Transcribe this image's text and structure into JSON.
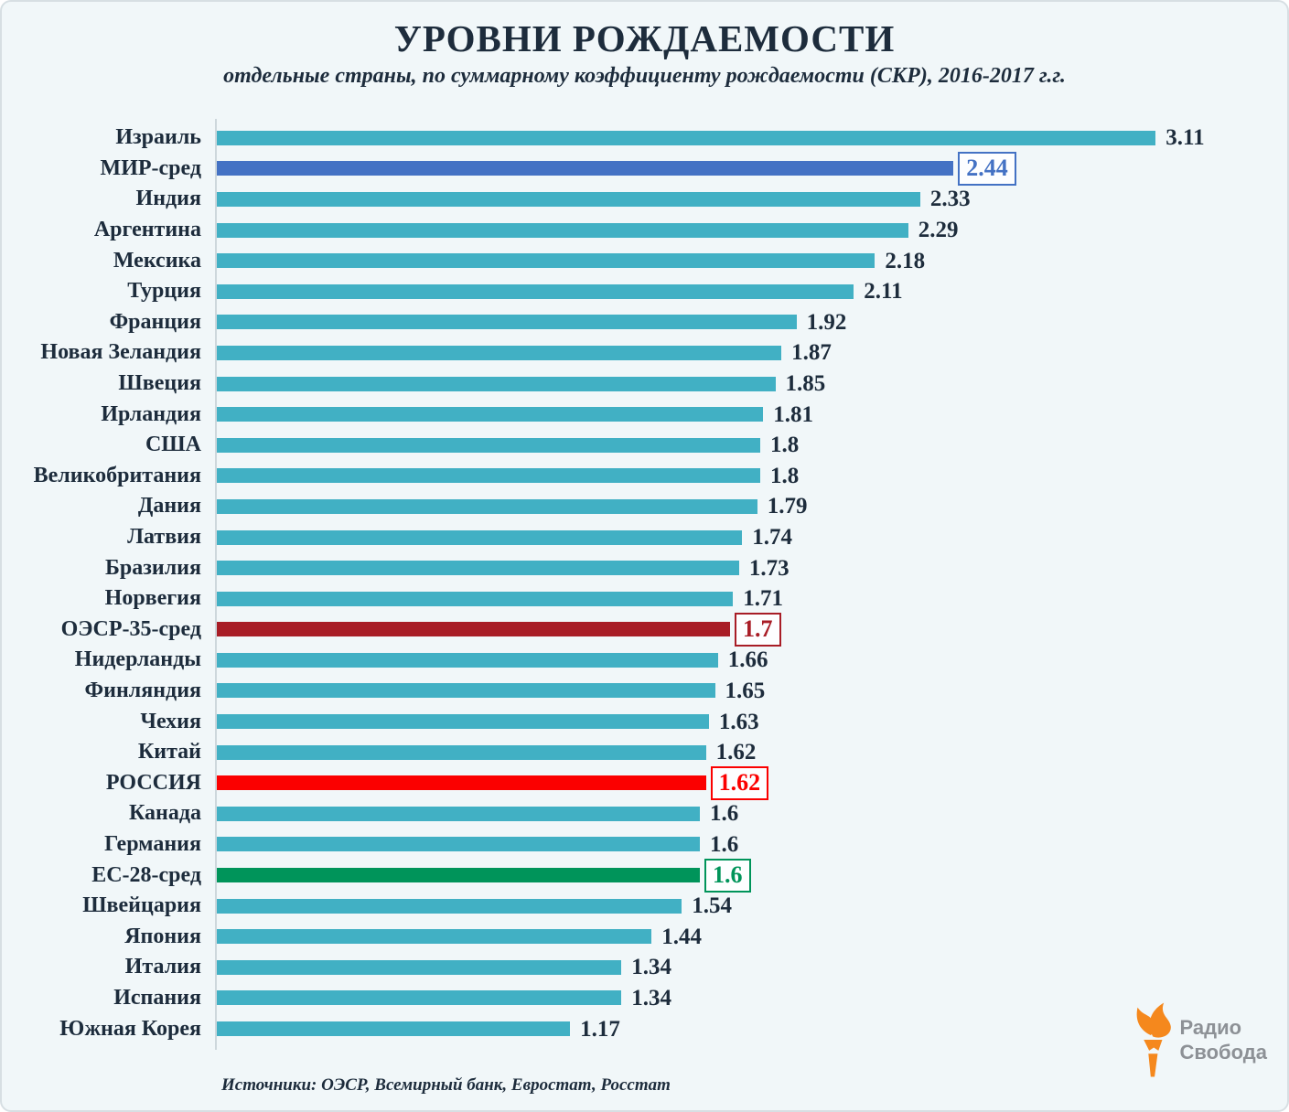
{
  "title": "УРОВНИ РОЖДАЕМОСТИ",
  "subtitle": "отдельные страны, по суммарному коэффициенту рождаемости (СКР), 2016-2017 г.г.",
  "source": "Источники: ОЭСР, Всемирный банк, Евростат, Росстат",
  "logo": {
    "line1": "Радио",
    "line2": "Свобода",
    "icon": "torch-flame-icon"
  },
  "colors": {
    "background": "#f1f7f9",
    "text": "#1d2c3c",
    "axis": "#cdd7dc",
    "teal": "#41b0c4",
    "world_blue": "#4472c4",
    "oecd_red": "#a81d26",
    "russia_red": "#fb0000",
    "eu_green": "#00945a",
    "logo_orange": "#f5881d",
    "logo_gray": "#8d9196"
  },
  "chart_data": {
    "type": "bar",
    "orientation": "horizontal",
    "title": "УРОВНИ РОЖДАЕМОСТИ",
    "subtitle": "отдельные страны, по суммарному коэффициенту рождаемости (СКР), 2016-2017 г.г.",
    "xlabel": "",
    "ylabel": "",
    "xlim": [
      0,
      3.2
    ],
    "grid": false,
    "legend": false,
    "rows": [
      {
        "label": "Израиль",
        "value": 3.11,
        "display": "3.11",
        "color": "teal",
        "boxed": false
      },
      {
        "label": "МИР-сред",
        "value": 2.44,
        "display": "2.44",
        "color": "world_blue",
        "boxed": true
      },
      {
        "label": "Индия",
        "value": 2.33,
        "display": "2.33",
        "color": "teal",
        "boxed": false
      },
      {
        "label": "Аргентина",
        "value": 2.29,
        "display": "2.29",
        "color": "teal",
        "boxed": false
      },
      {
        "label": "Мексика",
        "value": 2.18,
        "display": "2.18",
        "color": "teal",
        "boxed": false
      },
      {
        "label": "Турция",
        "value": 2.11,
        "display": "2.11",
        "color": "teal",
        "boxed": false
      },
      {
        "label": "Франция",
        "value": 1.92,
        "display": "1.92",
        "color": "teal",
        "boxed": false
      },
      {
        "label": "Новая Зеландия",
        "value": 1.87,
        "display": "1.87",
        "color": "teal",
        "boxed": false
      },
      {
        "label": "Швеция",
        "value": 1.85,
        "display": "1.85",
        "color": "teal",
        "boxed": false
      },
      {
        "label": "Ирландия",
        "value": 1.81,
        "display": "1.81",
        "color": "teal",
        "boxed": false
      },
      {
        "label": "США",
        "value": 1.8,
        "display": "1.8",
        "color": "teal",
        "boxed": false
      },
      {
        "label": "Великобритания",
        "value": 1.8,
        "display": "1.8",
        "color": "teal",
        "boxed": false
      },
      {
        "label": "Дания",
        "value": 1.79,
        "display": "1.79",
        "color": "teal",
        "boxed": false
      },
      {
        "label": "Латвия",
        "value": 1.74,
        "display": "1.74",
        "color": "teal",
        "boxed": false
      },
      {
        "label": "Бразилия",
        "value": 1.73,
        "display": "1.73",
        "color": "teal",
        "boxed": false
      },
      {
        "label": "Норвегия",
        "value": 1.71,
        "display": "1.71",
        "color": "teal",
        "boxed": false
      },
      {
        "label": "ОЭСР-35-сред",
        "value": 1.7,
        "display": "1.7",
        "color": "oecd_red",
        "boxed": true
      },
      {
        "label": "Нидерланды",
        "value": 1.66,
        "display": "1.66",
        "color": "teal",
        "boxed": false
      },
      {
        "label": "Финляндия",
        "value": 1.65,
        "display": "1.65",
        "color": "teal",
        "boxed": false
      },
      {
        "label": "Чехия",
        "value": 1.63,
        "display": "1.63",
        "color": "teal",
        "boxed": false
      },
      {
        "label": "Китай",
        "value": 1.62,
        "display": "1.62",
        "color": "teal",
        "boxed": false
      },
      {
        "label": "РОССИЯ",
        "value": 1.62,
        "display": "1.62",
        "color": "russia_red",
        "boxed": true
      },
      {
        "label": "Канада",
        "value": 1.6,
        "display": "1.6",
        "color": "teal",
        "boxed": false
      },
      {
        "label": "Германия",
        "value": 1.6,
        "display": "1.6",
        "color": "teal",
        "boxed": false
      },
      {
        "label": "ЕС-28-сред",
        "value": 1.6,
        "display": "1.6",
        "color": "eu_green",
        "boxed": true
      },
      {
        "label": "Швейцария",
        "value": 1.54,
        "display": "1.54",
        "color": "teal",
        "boxed": false
      },
      {
        "label": "Япония",
        "value": 1.44,
        "display": "1.44",
        "color": "teal",
        "boxed": false
      },
      {
        "label": "Италия",
        "value": 1.34,
        "display": "1.34",
        "color": "teal",
        "boxed": false
      },
      {
        "label": "Испания",
        "value": 1.34,
        "display": "1.34",
        "color": "teal",
        "boxed": false
      },
      {
        "label": "Южная Корея",
        "value": 1.17,
        "display": "1.17",
        "color": "teal",
        "boxed": false
      }
    ]
  }
}
